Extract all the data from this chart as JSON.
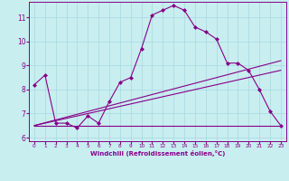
{
  "xlabel": "Windchill (Refroidissement éolien,°C)",
  "background_color": "#c8eef0",
  "line_color": "#880088",
  "grid_color": "#a8d8e0",
  "xlim": [
    -0.5,
    23.5
  ],
  "ylim": [
    5.85,
    11.65
  ],
  "yticks": [
    6,
    7,
    8,
    9,
    10,
    11
  ],
  "xticks": [
    0,
    1,
    2,
    3,
    4,
    5,
    6,
    7,
    8,
    9,
    10,
    11,
    12,
    13,
    14,
    15,
    16,
    17,
    18,
    19,
    20,
    21,
    22,
    23
  ],
  "line1_x": [
    0,
    1,
    2,
    3,
    4,
    5,
    6,
    7,
    8,
    9,
    10,
    11,
    12,
    13,
    14,
    15,
    16,
    17,
    18,
    19,
    20,
    21,
    22,
    23
  ],
  "line1_y": [
    8.2,
    8.6,
    6.6,
    6.6,
    6.4,
    6.9,
    6.6,
    7.5,
    8.3,
    8.5,
    9.7,
    11.1,
    11.3,
    11.5,
    11.3,
    10.6,
    10.4,
    10.1,
    9.1,
    9.1,
    8.8,
    8.0,
    7.1,
    6.5
  ],
  "line2_x": [
    0,
    23
  ],
  "line2_y": [
    6.5,
    6.5
  ],
  "line3_x": [
    0,
    23
  ],
  "line3_y": [
    6.5,
    8.8
  ],
  "line4_x": [
    0,
    23
  ],
  "line4_y": [
    6.5,
    9.2
  ],
  "marker_style": "D",
  "linewidth": 0.8,
  "markersize": 2.0
}
